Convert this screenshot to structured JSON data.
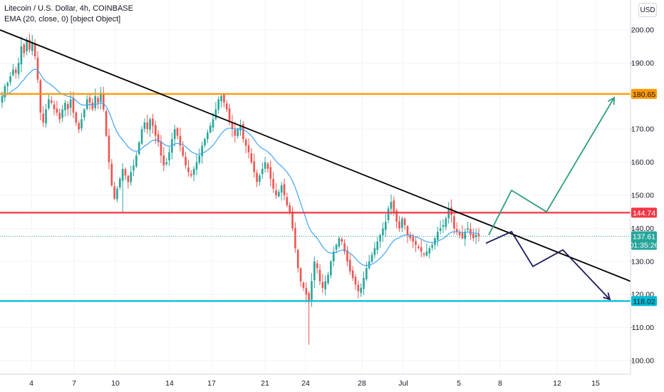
{
  "legend": {
    "symbol_line": "Litecoin / U.S. Dollar, 4h, COINBASE",
    "indicator_line": "EMA (20, close, 0) [object Object]"
  },
  "currency_button": "USD",
  "colors": {
    "up_candle": "#26a69a",
    "down_candle": "#ef5350",
    "ema": "#42a5f5",
    "trendline": "#000000",
    "resistance": "#ff9800",
    "support_red": "#f23645",
    "support_blue": "#00bcd4",
    "bull_path": "#2e9e7e",
    "bear_path": "#1a1a5e",
    "last_price_tag": "#26a69a",
    "countdown_tag": "#26a69a"
  },
  "chart_data": {
    "type": "candlestick",
    "title": "Litecoin / U.S. Dollar, 4h, COINBASE",
    "ylim": [
      96,
      205
    ],
    "y_ticks": [
      "200.00",
      "190.00",
      "180.00",
      "170.00",
      "160.00",
      "150.00",
      "140.00",
      "130.00",
      "120.00",
      "110.00",
      "100.00"
    ],
    "x_ticks": [
      "4",
      "7",
      "10",
      "14",
      "17",
      "21",
      "24",
      "28",
      "Jul",
      "5",
      "8",
      "12",
      "15"
    ],
    "price_levels": [
      {
        "name": "resistance",
        "value": 180.65,
        "label": "180.65"
      },
      {
        "name": "mid-level",
        "value": 144.74,
        "label": "144.74"
      },
      {
        "name": "support",
        "value": 118.02,
        "label": "118.02"
      }
    ],
    "last_price": {
      "value": 137.61,
      "label": "137.61",
      "countdown": "01:35:26"
    },
    "trendline": [
      {
        "x": 0,
        "y": 200
      },
      {
        "x": 1.0,
        "y": 124
      }
    ],
    "bull_projection": [
      138,
      151.5,
      145,
      179.5
    ],
    "bear_projection": [
      135.5,
      139,
      128.5,
      133.5,
      118.5
    ],
    "ema_period": 20,
    "closes": [
      180,
      183,
      184,
      186,
      188,
      187,
      190,
      195,
      193,
      197,
      194,
      196,
      192,
      185,
      175,
      172,
      176,
      179,
      178,
      176,
      175,
      173,
      176,
      178,
      176,
      179,
      175,
      172,
      170,
      173,
      176,
      179,
      178,
      176,
      180,
      178,
      181,
      176,
      168,
      160,
      153,
      149,
      152,
      155,
      158,
      156,
      154,
      157,
      159,
      162,
      166,
      170,
      172,
      170,
      173,
      171,
      168,
      166,
      162,
      159,
      160,
      163,
      167,
      170,
      168,
      165,
      162,
      159,
      157,
      156,
      158,
      160,
      162,
      165,
      167,
      169,
      171,
      173,
      176,
      179,
      180,
      178,
      176,
      172,
      170,
      168,
      170,
      171,
      167,
      165,
      163,
      160,
      157,
      154,
      156,
      158,
      160,
      158,
      155,
      152,
      150,
      151,
      153,
      150,
      147,
      145,
      140,
      134,
      128,
      124,
      122,
      120,
      118,
      124,
      130,
      128,
      124,
      122,
      124,
      126,
      130,
      133,
      135,
      137,
      136,
      133,
      130,
      127,
      125,
      123,
      121,
      122,
      125,
      128,
      130,
      132,
      134,
      136,
      138,
      140,
      142,
      146,
      148,
      145,
      142,
      140,
      143,
      141,
      138,
      137,
      136,
      135,
      134,
      133,
      132,
      133,
      134,
      135,
      137,
      139,
      140,
      141,
      143,
      146,
      144,
      140,
      139,
      138,
      137,
      139,
      140,
      138,
      137,
      138,
      137.61
    ]
  }
}
